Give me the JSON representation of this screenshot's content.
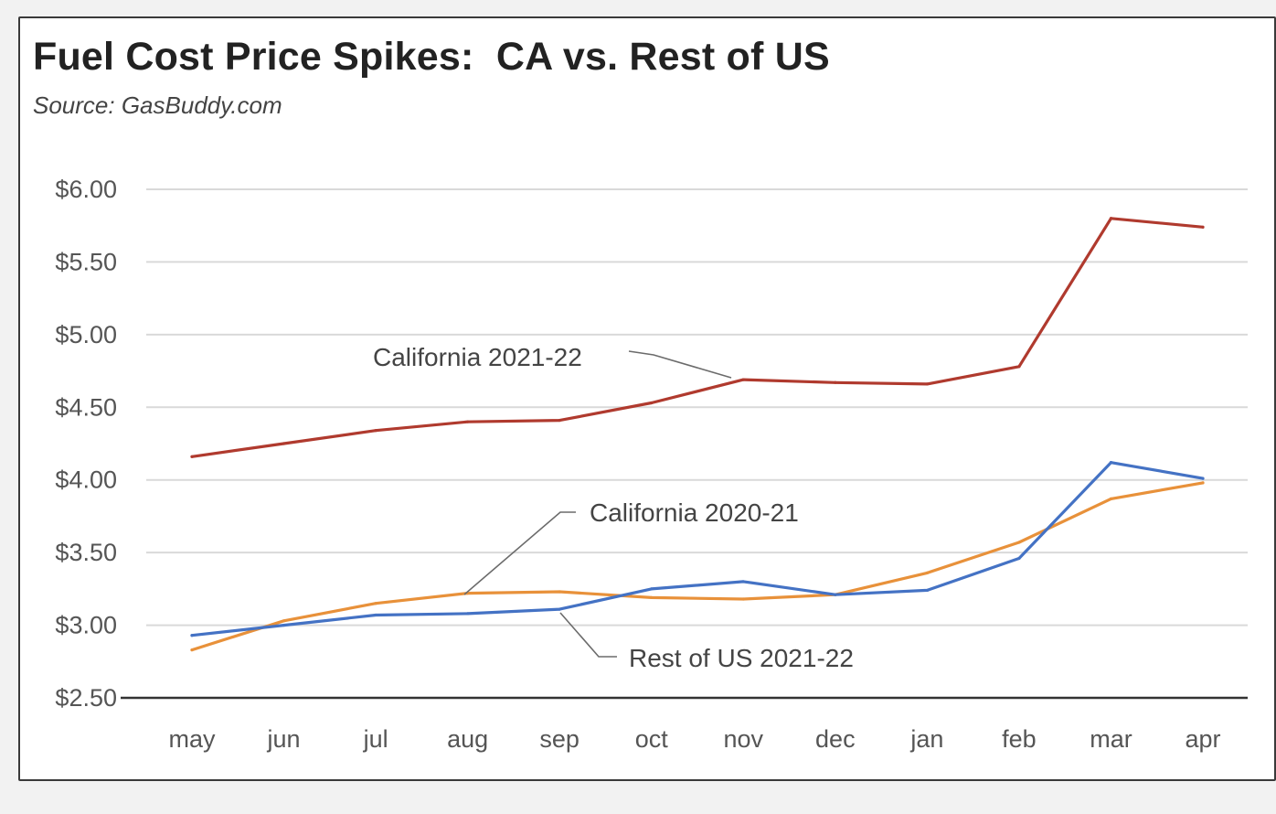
{
  "chart_data": {
    "type": "line",
    "title": "Fuel Cost Price Spikes:  CA vs. Rest of US",
    "subtitle": "Source: GasBuddy.com",
    "categories": [
      "may",
      "jun",
      "jul",
      "aug",
      "sep",
      "oct",
      "nov",
      "dec",
      "jan",
      "feb",
      "mar",
      "apr"
    ],
    "ylim": [
      2.5,
      6.0
    ],
    "yticks": [
      "$6.00",
      "$5.50",
      "$5.00",
      "$4.50",
      "$4.00",
      "$3.50",
      "$3.00",
      "$2.50"
    ],
    "ytick_values": [
      6.0,
      5.5,
      5.0,
      4.5,
      4.0,
      3.5,
      3.0,
      2.5
    ],
    "grid": true,
    "series": [
      {
        "name": "California 2021-22",
        "color": "#b03a2e",
        "values": [
          4.16,
          4.25,
          4.34,
          4.4,
          4.41,
          4.53,
          4.69,
          4.67,
          4.66,
          4.78,
          5.8,
          5.74
        ]
      },
      {
        "name": "California 2020-21",
        "color": "#e8913a",
        "values": [
          2.83,
          3.03,
          3.15,
          3.22,
          3.23,
          3.19,
          3.18,
          3.21,
          3.36,
          3.57,
          3.87,
          3.98
        ]
      },
      {
        "name": "Rest of US 2021-22",
        "color": "#4472c4",
        "values": [
          2.93,
          3.0,
          3.07,
          3.08,
          3.11,
          3.25,
          3.3,
          3.21,
          3.24,
          3.46,
          4.12,
          4.01
        ]
      }
    ]
  }
}
